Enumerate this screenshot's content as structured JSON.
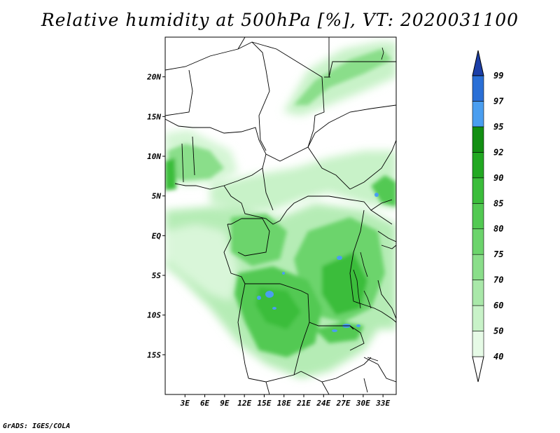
{
  "header": {
    "title": "Relative humidity at 500hPa [%], VT: 2020031100"
  },
  "footer": {
    "credit": "GrADS: IGES/COLA"
  },
  "map": {
    "lat_ticks": [
      "20N",
      "15N",
      "10N",
      "5N",
      "EQ",
      "5S",
      "10S",
      "15S"
    ],
    "lat_values": [
      20,
      15,
      10,
      5,
      0,
      -5,
      -10,
      -15
    ],
    "lon_ticks": [
      "3E",
      "6E",
      "9E",
      "12E",
      "15E",
      "18E",
      "21E",
      "24E",
      "27E",
      "30E",
      "33E"
    ],
    "lon_values": [
      3,
      6,
      9,
      12,
      15,
      18,
      21,
      24,
      27,
      30,
      33
    ],
    "lat_range": [
      -20,
      25
    ],
    "lon_range": [
      0,
      35
    ]
  },
  "colorbar": {
    "labels": [
      "40",
      "50",
      "60",
      "70",
      "75",
      "80",
      "85",
      "90",
      "92",
      "95",
      "97",
      "99"
    ],
    "colors": [
      "#ffffff",
      "#e6fae6",
      "#c8f2c8",
      "#a9e8a9",
      "#8ade8a",
      "#6cd46c",
      "#52c952",
      "#3bbd3b",
      "#22a822",
      "#128f12",
      "#4a9ef0",
      "#2a6fd6",
      "#1c3fa8"
    ]
  }
}
